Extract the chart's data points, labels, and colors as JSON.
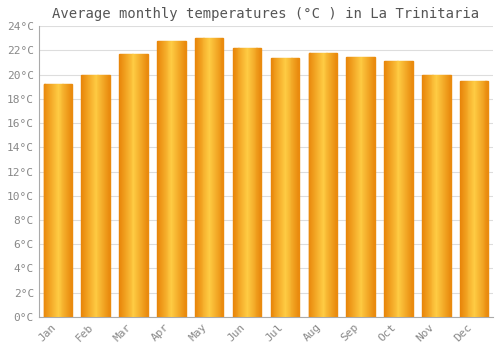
{
  "title": "Average monthly temperatures (°C ) in La Trinitaria",
  "months": [
    "Jan",
    "Feb",
    "Mar",
    "Apr",
    "May",
    "Jun",
    "Jul",
    "Aug",
    "Sep",
    "Oct",
    "Nov",
    "Dec"
  ],
  "values": [
    19.2,
    20.0,
    21.7,
    22.8,
    23.0,
    22.2,
    21.4,
    21.8,
    21.5,
    21.1,
    20.0,
    19.5
  ],
  "bar_color_center": "#FFBB33",
  "bar_color_edge_left": "#E8860A",
  "bar_color_edge_right": "#E8860A",
  "ylim": [
    0,
    24
  ],
  "ytick_step": 2,
  "background_color": "#FFFFFF",
  "grid_color": "#DDDDDD",
  "title_fontsize": 10,
  "tick_fontsize": 8,
  "label_color": "#888888",
  "spine_color": "#AAAAAA",
  "bar_width": 0.75,
  "gradient_steps": 30
}
